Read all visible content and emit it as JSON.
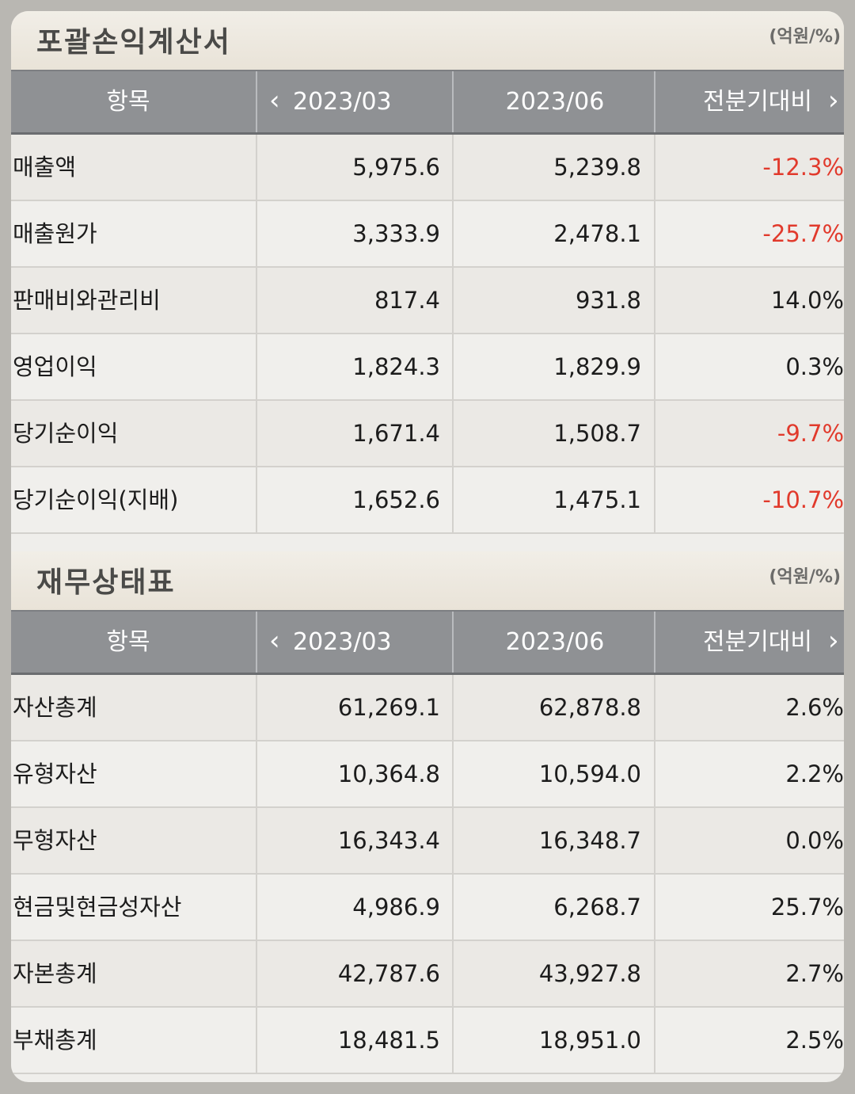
{
  "colors": {
    "negative": "#e13a2c",
    "header_bg": "#8f9194",
    "section_bg": "#efeeeb"
  },
  "income_statement": {
    "title": "포괄손익계산서",
    "unit": "(억원/%)",
    "headers": {
      "item": "항목",
      "col1": "2023/03",
      "col2": "2023/06",
      "col3": "전분기대비",
      "prev_icon": "chevron-left-icon",
      "next_icon": "chevron-right-icon",
      "prev_glyph": "‹",
      "next_glyph": "›"
    },
    "rows": [
      {
        "item": "매출액",
        "v1": "5,975.6",
        "v2": "5,239.8",
        "v3": "-12.3%",
        "neg": true
      },
      {
        "item": "매출원가",
        "v1": "3,333.9",
        "v2": "2,478.1",
        "v3": "-25.7%",
        "neg": true
      },
      {
        "item": "판매비와관리비",
        "v1": "817.4",
        "v2": "931.8",
        "v3": "14.0%",
        "neg": false
      },
      {
        "item": "영업이익",
        "v1": "1,824.3",
        "v2": "1,829.9",
        "v3": "0.3%",
        "neg": false
      },
      {
        "item": "당기순이익",
        "v1": "1,671.4",
        "v2": "1,508.7",
        "v3": "-9.7%",
        "neg": true
      },
      {
        "item": "당기순이익(지배)",
        "v1": "1,652.6",
        "v2": "1,475.1",
        "v3": "-10.7%",
        "neg": true
      }
    ]
  },
  "balance_sheet": {
    "title": "재무상태표",
    "unit": "(억원/%)",
    "headers": {
      "item": "항목",
      "col1": "2023/03",
      "col2": "2023/06",
      "col3": "전분기대비",
      "prev_icon": "chevron-left-icon",
      "next_icon": "chevron-right-icon",
      "prev_glyph": "‹",
      "next_glyph": "›"
    },
    "rows": [
      {
        "item": "자산총계",
        "v1": "61,269.1",
        "v2": "62,878.8",
        "v3": "2.6%",
        "neg": false
      },
      {
        "item": "유형자산",
        "v1": "10,364.8",
        "v2": "10,594.0",
        "v3": "2.2%",
        "neg": false
      },
      {
        "item": "무형자산",
        "v1": "16,343.4",
        "v2": "16,348.7",
        "v3": "0.0%",
        "neg": false
      },
      {
        "item": "현금및현금성자산",
        "v1": "4,986.9",
        "v2": "6,268.7",
        "v3": "25.7%",
        "neg": false
      },
      {
        "item": "자본총계",
        "v1": "42,787.6",
        "v2": "43,927.8",
        "v3": "2.7%",
        "neg": false
      },
      {
        "item": "부채총계",
        "v1": "18,481.5",
        "v2": "18,951.0",
        "v3": "2.5%",
        "neg": false
      }
    ]
  }
}
